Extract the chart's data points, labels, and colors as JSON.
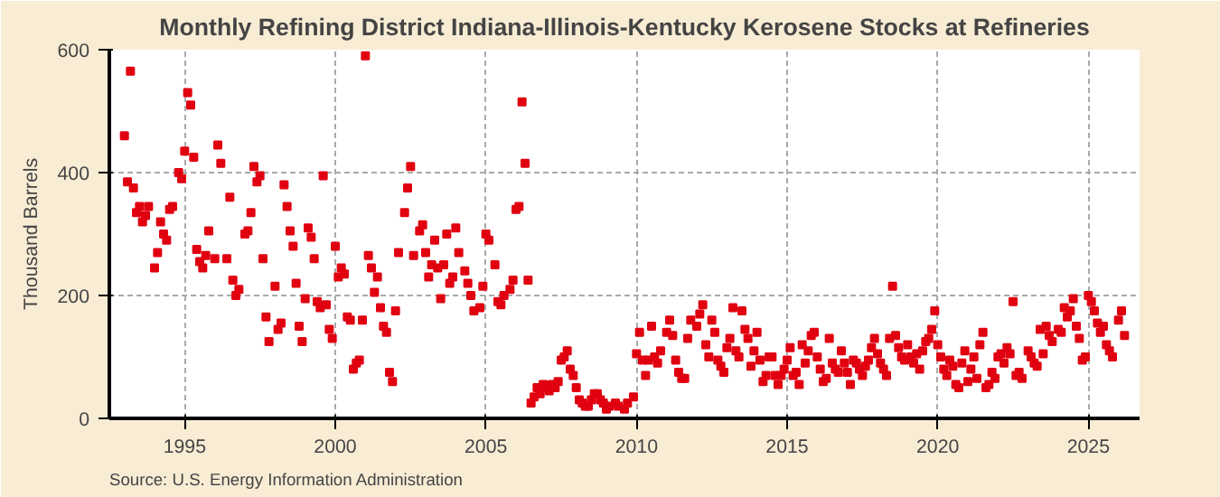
{
  "chart_data": {
    "type": "scatter",
    "title": "Monthly Refining District Indiana-Illinois-Kentucky Kerosene Stocks at Refineries",
    "ylabel": "Thousand Barrels",
    "annotations": [
      "Source: U.S. Energy Information Administration"
    ],
    "marker": "square",
    "grid": true,
    "xlim": [
      1992.5,
      2026.7
    ],
    "xticks": [
      1995,
      2000,
      2005,
      2010,
      2015,
      2020,
      2025
    ],
    "ylim": [
      0,
      600
    ],
    "yticks": [
      0,
      200,
      400,
      600
    ],
    "series": [
      {
        "color": "#e00010",
        "x": [
          1993.0,
          1993.1,
          1993.2,
          1993.3,
          1993.4,
          1993.5,
          1993.6,
          1993.7,
          1993.8,
          1994.0,
          1994.1,
          1994.2,
          1994.3,
          1994.4,
          1994.5,
          1994.6,
          1994.8,
          1994.9,
          1995.0,
          1995.1,
          1995.2,
          1995.3,
          1995.4,
          1995.5,
          1995.6,
          1995.7,
          1995.8,
          1996.0,
          1996.1,
          1996.2,
          1996.4,
          1996.5,
          1996.6,
          1996.7,
          1996.8,
          1997.0,
          1997.1,
          1997.2,
          1997.3,
          1997.4,
          1997.5,
          1997.6,
          1997.7,
          1997.8,
          1998.0,
          1998.1,
          1998.2,
          1998.3,
          1998.4,
          1998.5,
          1998.6,
          1998.7,
          1998.8,
          1998.9,
          1999.0,
          1999.1,
          1999.2,
          1999.3,
          1999.4,
          1999.5,
          1999.6,
          1999.7,
          1999.8,
          1999.9,
          2000.0,
          2000.1,
          2000.2,
          2000.3,
          2000.4,
          2000.5,
          2000.6,
          2000.7,
          2000.8,
          2000.9,
          2001.0,
          2001.1,
          2001.2,
          2001.3,
          2001.4,
          2001.5,
          2001.6,
          2001.7,
          2001.8,
          2001.9,
          2002.0,
          2002.1,
          2002.3,
          2002.4,
          2002.5,
          2002.6,
          2002.8,
          2002.9,
          2003.0,
          2003.1,
          2003.2,
          2003.3,
          2003.4,
          2003.5,
          2003.6,
          2003.7,
          2003.8,
          2003.9,
          2004.0,
          2004.1,
          2004.3,
          2004.4,
          2004.5,
          2004.6,
          2004.8,
          2004.9,
          2005.0,
          2005.1,
          2005.3,
          2005.4,
          2005.5,
          2005.6,
          2005.8,
          2005.9,
          2006.0,
          2006.1,
          2006.2,
          2006.3,
          2006.4,
          2006.5,
          2006.6,
          2006.7,
          2006.8,
          2006.9,
          2007.0,
          2007.1,
          2007.2,
          2007.3,
          2007.4,
          2007.5,
          2007.6,
          2007.7,
          2007.8,
          2007.9,
          2008.0,
          2008.1,
          2008.2,
          2008.3,
          2008.4,
          2008.5,
          2008.6,
          2008.7,
          2008.8,
          2008.9,
          2009.0,
          2009.1,
          2009.3,
          2009.4,
          2009.6,
          2009.7,
          2009.9,
          2010.0,
          2010.1,
          2010.2,
          2010.3,
          2010.4,
          2010.5,
          2010.6,
          2010.7,
          2010.8,
          2011.0,
          2011.1,
          2011.2,
          2011.3,
          2011.4,
          2011.5,
          2011.6,
          2011.7,
          2011.8,
          2012.0,
          2012.1,
          2012.2,
          2012.3,
          2012.4,
          2012.5,
          2012.6,
          2012.7,
          2012.8,
          2012.9,
          2013.0,
          2013.1,
          2013.2,
          2013.3,
          2013.4,
          2013.5,
          2013.6,
          2013.7,
          2013.8,
          2013.9,
          2014.0,
          2014.1,
          2014.2,
          2014.3,
          2014.4,
          2014.5,
          2014.6,
          2014.7,
          2014.8,
          2014.9,
          2015.0,
          2015.1,
          2015.2,
          2015.3,
          2015.4,
          2015.5,
          2015.6,
          2015.7,
          2015.8,
          2015.9,
          2016.0,
          2016.1,
          2016.2,
          2016.3,
          2016.4,
          2016.5,
          2016.6,
          2016.7,
          2016.8,
          2016.9,
          2017.0,
          2017.1,
          2017.2,
          2017.3,
          2017.4,
          2017.5,
          2017.6,
          2017.7,
          2017.8,
          2017.9,
          2018.0,
          2018.1,
          2018.2,
          2018.3,
          2018.4,
          2018.5,
          2018.6,
          2018.7,
          2018.8,
          2018.9,
          2019.0,
          2019.1,
          2019.2,
          2019.3,
          2019.4,
          2019.5,
          2019.6,
          2019.7,
          2019.8,
          2019.9,
          2020.0,
          2020.1,
          2020.2,
          2020.3,
          2020.4,
          2020.5,
          2020.6,
          2020.7,
          2020.8,
          2020.9,
          2021.0,
          2021.1,
          2021.2,
          2021.3,
          2021.4,
          2021.5,
          2021.6,
          2021.7,
          2021.8,
          2021.9,
          2022.0,
          2022.1,
          2022.2,
          2022.3,
          2022.4,
          2022.5,
          2022.6,
          2022.7,
          2022.8,
          2023.0,
          2023.1,
          2023.2,
          2023.3,
          2023.4,
          2023.5,
          2023.6,
          2023.7,
          2023.8,
          2024.0,
          2024.1,
          2024.2,
          2024.3,
          2024.4,
          2024.5,
          2024.6,
          2024.7,
          2024.8,
          2024.9,
          2025.0,
          2025.1,
          2025.2,
          2025.3,
          2025.4,
          2025.5,
          2025.6,
          2025.7,
          2025.8,
          2026.0,
          2026.1,
          2026.2
        ],
        "values": [
          460,
          385,
          565,
          375,
          335,
          345,
          320,
          330,
          345,
          245,
          270,
          320,
          300,
          290,
          340,
          345,
          400,
          390,
          435,
          530,
          510,
          425,
          275,
          255,
          245,
          265,
          305,
          260,
          445,
          415,
          260,
          360,
          225,
          200,
          210,
          300,
          305,
          335,
          410,
          385,
          395,
          260,
          165,
          125,
          215,
          145,
          155,
          380,
          345,
          305,
          280,
          220,
          150,
          125,
          195,
          310,
          295,
          260,
          190,
          180,
          395,
          185,
          145,
          130,
          280,
          230,
          245,
          235,
          165,
          160,
          80,
          90,
          95,
          160,
          590,
          265,
          245,
          205,
          230,
          180,
          150,
          140,
          75,
          60,
          175,
          270,
          335,
          375,
          410,
          265,
          305,
          315,
          270,
          230,
          250,
          290,
          245,
          195,
          250,
          300,
          220,
          230,
          310,
          270,
          240,
          220,
          200,
          175,
          180,
          215,
          300,
          290,
          250,
          190,
          185,
          200,
          210,
          225,
          340,
          345,
          515,
          415,
          225,
          25,
          35,
          50,
          40,
          55,
          50,
          45,
          55,
          50,
          60,
          95,
          100,
          110,
          80,
          70,
          50,
          30,
          25,
          20,
          20,
          30,
          40,
          40,
          30,
          25,
          15,
          20,
          25,
          20,
          15,
          25,
          35,
          105,
          140,
          95,
          70,
          95,
          150,
          100,
          90,
          110,
          140,
          160,
          135,
          95,
          75,
          65,
          65,
          130,
          160,
          150,
          170,
          185,
          120,
          100,
          160,
          140,
          95,
          85,
          75,
          115,
          130,
          180,
          110,
          100,
          175,
          145,
          130,
          85,
          110,
          140,
          95,
          60,
          70,
          100,
          100,
          70,
          55,
          70,
          80,
          95,
          115,
          70,
          75,
          55,
          120,
          90,
          110,
          135,
          140,
          100,
          80,
          60,
          65,
          130,
          90,
          80,
          75,
          110,
          90,
          75,
          55,
          95,
          90,
          80,
          70,
          85,
          95,
          115,
          130,
          105,
          90,
          80,
          70,
          130,
          215,
          135,
          115,
          100,
          95,
          120,
          100,
          90,
          105,
          80,
          110,
          125,
          130,
          145,
          175,
          120,
          100,
          80,
          70,
          95,
          85,
          55,
          50,
          90,
          110,
          60,
          80,
          100,
          65,
          120,
          140,
          50,
          55,
          75,
          65,
          100,
          105,
          90,
          115,
          105,
          190,
          70,
          75,
          65,
          110,
          100,
          90,
          85,
          145,
          105,
          150,
          135,
          125,
          145,
          140,
          180,
          165,
          175,
          195,
          150,
          130,
          95,
          100,
          200,
          190,
          175,
          155,
          140,
          150,
          120,
          110,
          100,
          160,
          175,
          135
        ]
      }
    ]
  }
}
